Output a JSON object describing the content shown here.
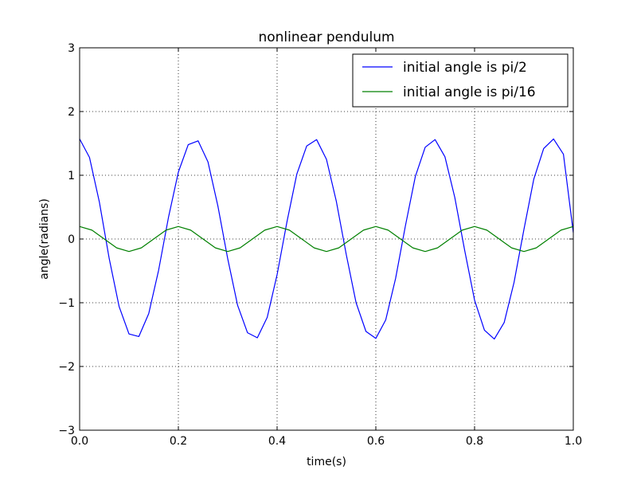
{
  "chart_data": {
    "type": "line",
    "title": "nonlinear pendulum",
    "xlabel": "time(s)",
    "ylabel": "angle(radians)",
    "xlim": [
      0.0,
      1.0
    ],
    "ylim": [
      -3,
      3
    ],
    "xticks": [
      0.0,
      0.2,
      0.4,
      0.6,
      0.8,
      1.0
    ],
    "xtick_labels": [
      "0.0",
      "0.2",
      "0.4",
      "0.6",
      "0.8",
      "1.0"
    ],
    "yticks": [
      -3,
      -2,
      -1,
      0,
      1,
      2,
      3
    ],
    "ytick_labels": [
      "−3",
      "−2",
      "−1",
      "0",
      "1",
      "2",
      "3"
    ],
    "grid": true,
    "legend_position": "top-right",
    "series": [
      {
        "name": "initial angle is pi/2",
        "color": "#0000ff",
        "x": [
          0.0,
          0.02,
          0.04,
          0.06,
          0.08,
          0.1,
          0.12,
          0.14,
          0.16,
          0.18,
          0.2,
          0.22,
          0.24,
          0.26,
          0.28,
          0.3,
          0.32,
          0.34,
          0.36,
          0.38,
          0.4,
          0.42,
          0.44,
          0.46,
          0.48,
          0.5,
          0.52,
          0.54,
          0.56,
          0.58,
          0.6,
          0.62,
          0.64,
          0.66,
          0.68,
          0.7,
          0.72,
          0.74,
          0.76,
          0.78,
          0.8,
          0.82,
          0.84,
          0.86,
          0.88,
          0.9,
          0.92,
          0.94,
          0.96,
          0.98,
          1.0
        ],
        "y": [
          1.57,
          1.28,
          0.58,
          -0.31,
          -1.06,
          -1.49,
          -1.53,
          -1.17,
          -0.49,
          0.34,
          1.05,
          1.48,
          1.54,
          1.21,
          0.52,
          -0.31,
          -1.04,
          -1.47,
          -1.55,
          -1.23,
          -0.56,
          0.27,
          1.02,
          1.46,
          1.56,
          1.25,
          0.59,
          -0.24,
          -1.0,
          -1.45,
          -1.56,
          -1.27,
          -0.62,
          0.21,
          0.98,
          1.44,
          1.56,
          1.29,
          0.65,
          -0.18,
          -0.96,
          -1.43,
          -1.57,
          -1.31,
          -0.68,
          0.15,
          0.94,
          1.42,
          1.57,
          1.33,
          0.1
        ]
      },
      {
        "name": "initial angle is pi/16",
        "color": "#008000",
        "x": [
          0.0,
          0.025,
          0.05,
          0.075,
          0.1,
          0.125,
          0.15,
          0.175,
          0.2,
          0.225,
          0.25,
          0.275,
          0.3,
          0.325,
          0.35,
          0.375,
          0.4,
          0.425,
          0.45,
          0.475,
          0.5,
          0.525,
          0.55,
          0.575,
          0.6,
          0.625,
          0.65,
          0.675,
          0.7,
          0.725,
          0.75,
          0.775,
          0.8,
          0.825,
          0.85,
          0.875,
          0.9,
          0.925,
          0.95,
          0.975,
          1.0
        ],
        "y": [
          0.196,
          0.139,
          0.0,
          -0.139,
          -0.196,
          -0.139,
          0.0,
          0.139,
          0.196,
          0.139,
          0.0,
          -0.139,
          -0.196,
          -0.139,
          0.0,
          0.139,
          0.196,
          0.139,
          0.0,
          -0.139,
          -0.196,
          -0.139,
          0.0,
          0.139,
          0.196,
          0.139,
          0.0,
          -0.139,
          -0.196,
          -0.139,
          0.0,
          0.139,
          0.196,
          0.139,
          0.0,
          -0.139,
          -0.196,
          -0.139,
          0.0,
          0.139,
          0.196
        ]
      }
    ]
  }
}
